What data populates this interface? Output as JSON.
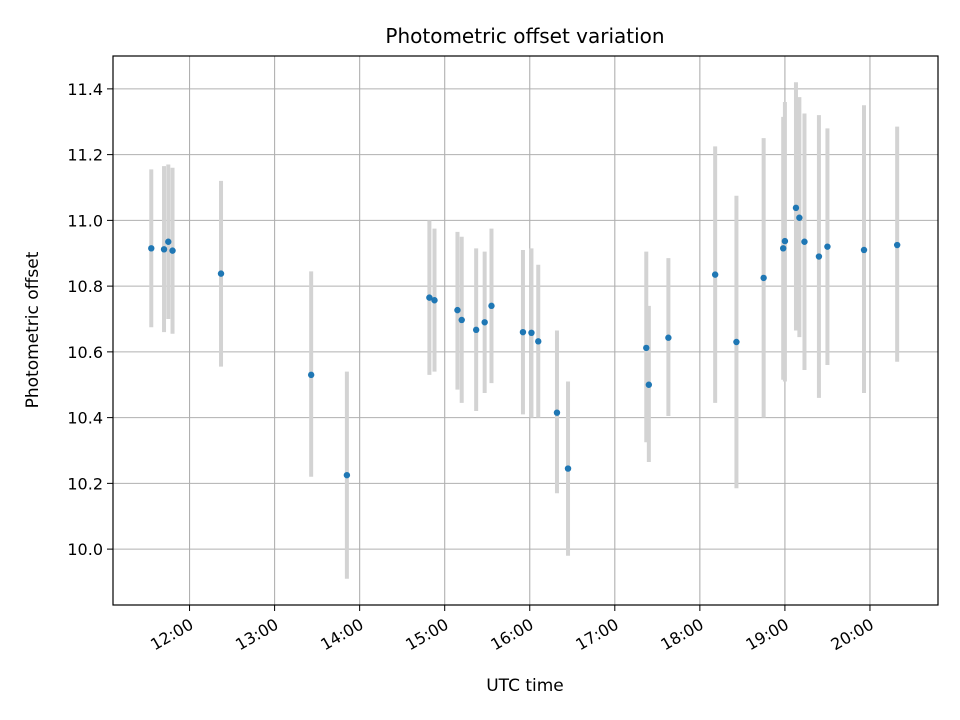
{
  "chart_data": {
    "type": "scatter",
    "title": "Photometric offset variation",
    "xlabel": "UTC time",
    "ylabel": "Photometric offset",
    "x_tick_labels": [
      "12:00",
      "13:00",
      "14:00",
      "15:00",
      "16:00",
      "17:00",
      "18:00",
      "19:00",
      "20:00"
    ],
    "x_ticks_hours": [
      12,
      13,
      14,
      15,
      16,
      17,
      18,
      19,
      20
    ],
    "y_ticks": [
      10.0,
      10.2,
      10.4,
      10.6,
      10.8,
      11.0,
      11.2,
      11.4
    ],
    "xlim_hours": [
      11.1,
      20.8
    ],
    "ylim": [
      9.83,
      11.5
    ],
    "grid": true,
    "colors": {
      "point": "#1f77b4",
      "errorbar": "#d3d3d3",
      "grid": "#b0b0b0"
    },
    "points": [
      {
        "t": 11.55,
        "y": 10.915,
        "lo": 10.675,
        "hi": 11.155
      },
      {
        "t": 11.7,
        "y": 10.912,
        "lo": 10.66,
        "hi": 11.165
      },
      {
        "t": 11.75,
        "y": 10.935,
        "lo": 10.7,
        "hi": 11.17
      },
      {
        "t": 11.8,
        "y": 10.908,
        "lo": 10.655,
        "hi": 11.16
      },
      {
        "t": 12.37,
        "y": 10.838,
        "lo": 10.555,
        "hi": 11.12
      },
      {
        "t": 13.43,
        "y": 10.53,
        "lo": 10.22,
        "hi": 10.845
      },
      {
        "t": 13.85,
        "y": 10.225,
        "lo": 9.91,
        "hi": 10.54
      },
      {
        "t": 14.82,
        "y": 10.765,
        "lo": 10.53,
        "hi": 11.0
      },
      {
        "t": 14.88,
        "y": 10.757,
        "lo": 10.54,
        "hi": 10.975
      },
      {
        "t": 15.15,
        "y": 10.727,
        "lo": 10.485,
        "hi": 10.965
      },
      {
        "t": 15.2,
        "y": 10.697,
        "lo": 10.445,
        "hi": 10.95
      },
      {
        "t": 15.37,
        "y": 10.667,
        "lo": 10.42,
        "hi": 10.915
      },
      {
        "t": 15.47,
        "y": 10.69,
        "lo": 10.475,
        "hi": 10.905
      },
      {
        "t": 15.55,
        "y": 10.74,
        "lo": 10.505,
        "hi": 10.975
      },
      {
        "t": 15.92,
        "y": 10.66,
        "lo": 10.41,
        "hi": 10.91
      },
      {
        "t": 16.02,
        "y": 10.658,
        "lo": 10.4,
        "hi": 10.915
      },
      {
        "t": 16.1,
        "y": 10.632,
        "lo": 10.4,
        "hi": 10.865
      },
      {
        "t": 16.32,
        "y": 10.415,
        "lo": 10.17,
        "hi": 10.665
      },
      {
        "t": 16.45,
        "y": 10.245,
        "lo": 9.98,
        "hi": 10.51
      },
      {
        "t": 17.37,
        "y": 10.612,
        "lo": 10.325,
        "hi": 10.905
      },
      {
        "t": 17.4,
        "y": 10.5,
        "lo": 10.265,
        "hi": 10.74
      },
      {
        "t": 17.63,
        "y": 10.643,
        "lo": 10.405,
        "hi": 10.885
      },
      {
        "t": 18.18,
        "y": 10.835,
        "lo": 10.445,
        "hi": 11.225
      },
      {
        "t": 18.43,
        "y": 10.63,
        "lo": 10.185,
        "hi": 11.075
      },
      {
        "t": 18.75,
        "y": 10.825,
        "lo": 10.4,
        "hi": 11.25
      },
      {
        "t": 18.98,
        "y": 10.915,
        "lo": 10.515,
        "hi": 11.315
      },
      {
        "t": 19.0,
        "y": 10.937,
        "lo": 10.51,
        "hi": 11.36
      },
      {
        "t": 19.13,
        "y": 11.038,
        "lo": 10.665,
        "hi": 11.42
      },
      {
        "t": 19.17,
        "y": 11.008,
        "lo": 10.645,
        "hi": 11.375
      },
      {
        "t": 19.23,
        "y": 10.935,
        "lo": 10.545,
        "hi": 11.325
      },
      {
        "t": 19.4,
        "y": 10.89,
        "lo": 10.46,
        "hi": 11.32
      },
      {
        "t": 19.5,
        "y": 10.92,
        "lo": 10.56,
        "hi": 11.28
      },
      {
        "t": 19.93,
        "y": 10.91,
        "lo": 10.475,
        "hi": 11.35
      },
      {
        "t": 20.32,
        "y": 10.925,
        "lo": 10.57,
        "hi": 11.285
      }
    ]
  }
}
